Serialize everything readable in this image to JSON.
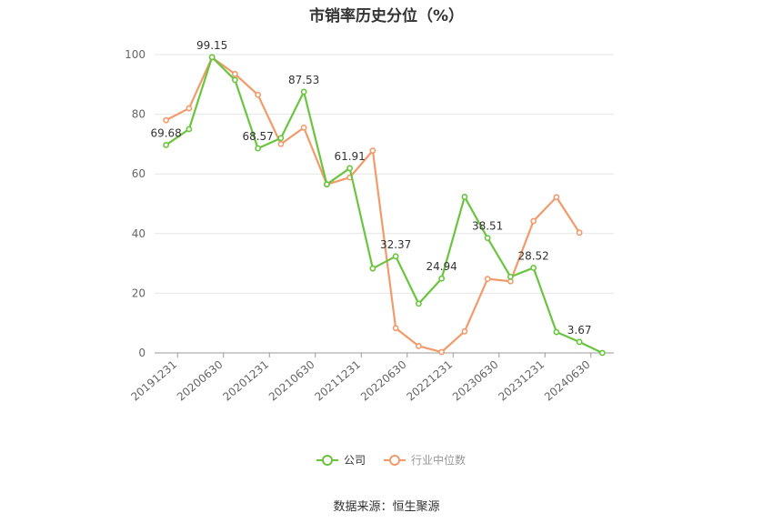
{
  "chart_data": {
    "type": "line",
    "title": "市销率历史分位（%）",
    "x_tick_labels": [
      "20191231",
      "20200630",
      "20201231",
      "20210630",
      "20211231",
      "20220630",
      "20221231",
      "20230630",
      "20231231",
      "20240630"
    ],
    "ylim": [
      0,
      100
    ],
    "yticks": [
      0,
      20,
      40,
      60,
      80,
      100
    ],
    "grid": "horizontal",
    "legend_position": "bottom",
    "series": [
      {
        "name": "公司",
        "color": "#6ac53e",
        "values": [
          69.68,
          75.0,
          99.15,
          91.5,
          68.57,
          72.0,
          87.53,
          56.5,
          61.91,
          28.3,
          32.37,
          16.5,
          24.94,
          52.3,
          38.51,
          25.5,
          28.52,
          7.0,
          3.67,
          0.0
        ],
        "labels": [
          "69.68",
          null,
          "99.15",
          null,
          "68.57",
          null,
          "87.53",
          null,
          "61.91",
          null,
          "32.37",
          null,
          "24.94",
          null,
          "38.51",
          null,
          "28.52",
          null,
          "3.67",
          null
        ]
      },
      {
        "name": "行业中位数",
        "color": "#f29a6a",
        "values": [
          78.0,
          82.0,
          99.0,
          93.5,
          86.5,
          70.0,
          75.5,
          56.5,
          58.8,
          67.8,
          8.3,
          2.3,
          0.3,
          7.2,
          24.8,
          24.0,
          44.2,
          52.2,
          40.3,
          null
        ]
      }
    ]
  },
  "source": "数据来源：恒生聚源"
}
